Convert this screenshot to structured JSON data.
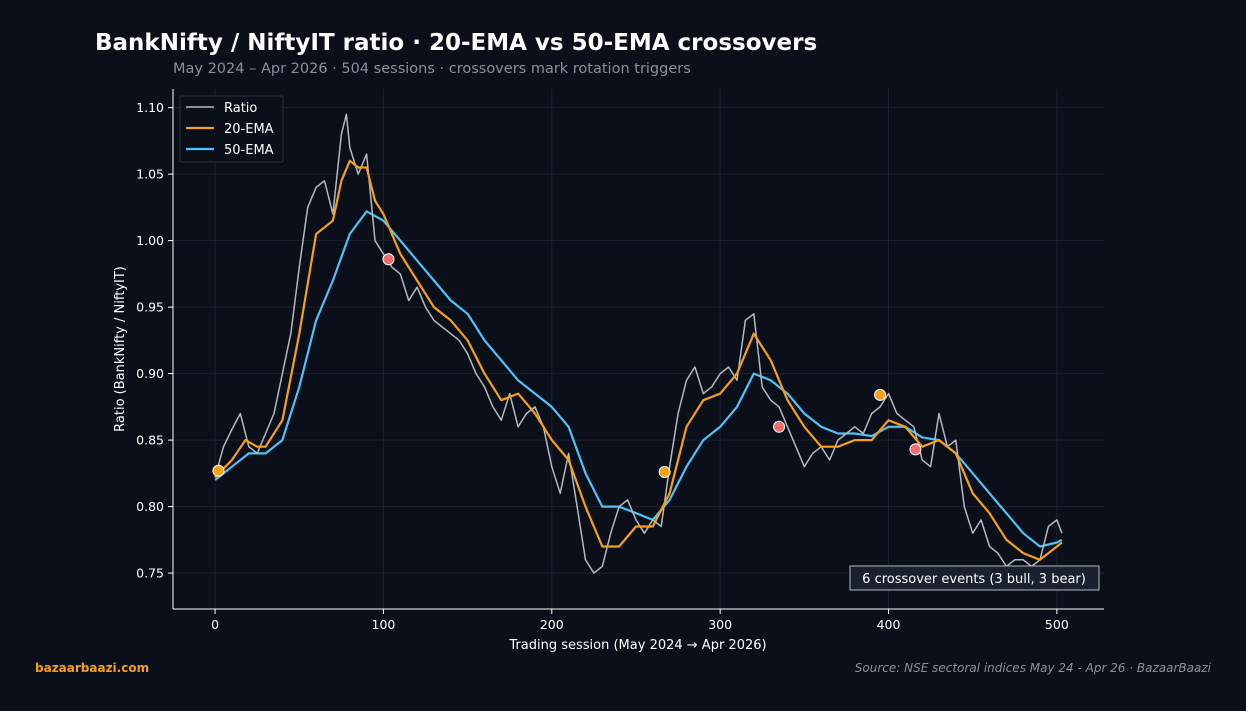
{
  "title": "BankNifty / NiftyIT ratio · 20-EMA vs 50-EMA crossovers",
  "subtitle": "May 2024 – Apr 2026  ·  504 sessions  ·  crossovers mark rotation triggers",
  "brand": "bazaarbaazi.com",
  "source": "Source: NSE sectoral indices May 24 - Apr 26  ·  BazaarBaazi",
  "colors": {
    "background": "#0b0f19",
    "ratio": "#b5b8bf",
    "ema20": "#f5a01a",
    "ema50": "#4fc3f7",
    "bull_marker": "#f5a01a",
    "bear_marker": "#f06b6b"
  },
  "chart_data": {
    "type": "line",
    "xlabel": "Trading session (May 2024 → Apr 2026)",
    "ylabel": "Ratio (BankNifty / NiftyIT)",
    "xlim": [
      -25,
      528
    ],
    "ylim": [
      0.723,
      1.114
    ],
    "xticks": [
      0,
      100,
      200,
      300,
      400,
      500
    ],
    "yticks": [
      0.75,
      0.8,
      0.85,
      0.9,
      0.95,
      1.0,
      1.05,
      1.1
    ],
    "xtick_labels": [
      "0",
      "100",
      "200",
      "300",
      "400",
      "500"
    ],
    "ytick_labels": [
      "0.75",
      "0.80",
      "0.85",
      "0.90",
      "0.95",
      "1.00",
      "1.05",
      "1.10"
    ],
    "grid": true,
    "legend_position": "top-left",
    "annotation": "6 crossover events (3 bull, 3 bear)",
    "series": [
      {
        "name": "Ratio",
        "key": "ratio",
        "x": [
          0,
          5,
          10,
          15,
          20,
          25,
          30,
          35,
          40,
          45,
          50,
          55,
          60,
          65,
          70,
          75,
          78,
          80,
          85,
          90,
          95,
          100,
          105,
          110,
          115,
          120,
          125,
          130,
          135,
          140,
          145,
          150,
          155,
          160,
          165,
          170,
          175,
          180,
          185,
          190,
          195,
          200,
          205,
          210,
          215,
          220,
          225,
          230,
          235,
          240,
          245,
          250,
          255,
          260,
          265,
          270,
          275,
          280,
          285,
          290,
          295,
          300,
          305,
          310,
          315,
          320,
          325,
          330,
          335,
          340,
          345,
          350,
          355,
          360,
          365,
          370,
          375,
          380,
          385,
          390,
          395,
          400,
          405,
          410,
          415,
          420,
          425,
          430,
          435,
          440,
          445,
          450,
          455,
          460,
          465,
          470,
          475,
          480,
          485,
          490,
          495,
          500,
          503
        ],
        "y": [
          0.822,
          0.845,
          0.858,
          0.87,
          0.845,
          0.84,
          0.855,
          0.87,
          0.9,
          0.93,
          0.98,
          1.025,
          1.04,
          1.045,
          1.02,
          1.08,
          1.095,
          1.07,
          1.05,
          1.065,
          1.0,
          0.99,
          0.98,
          0.975,
          0.955,
          0.965,
          0.95,
          0.94,
          0.935,
          0.93,
          0.925,
          0.915,
          0.9,
          0.89,
          0.875,
          0.865,
          0.885,
          0.86,
          0.87,
          0.875,
          0.86,
          0.83,
          0.81,
          0.84,
          0.8,
          0.76,
          0.75,
          0.755,
          0.78,
          0.8,
          0.805,
          0.79,
          0.78,
          0.79,
          0.785,
          0.83,
          0.87,
          0.895,
          0.905,
          0.885,
          0.89,
          0.9,
          0.905,
          0.895,
          0.94,
          0.945,
          0.89,
          0.88,
          0.875,
          0.86,
          0.845,
          0.83,
          0.84,
          0.845,
          0.835,
          0.85,
          0.855,
          0.86,
          0.855,
          0.87,
          0.875,
          0.885,
          0.87,
          0.865,
          0.86,
          0.835,
          0.83,
          0.87,
          0.845,
          0.85,
          0.8,
          0.78,
          0.79,
          0.77,
          0.765,
          0.755,
          0.76,
          0.76,
          0.755,
          0.76,
          0.785,
          0.79,
          0.78
        ]
      },
      {
        "name": "20-EMA",
        "key": "ema20",
        "x": [
          0,
          10,
          18,
          25,
          30,
          40,
          50,
          60,
          70,
          75,
          80,
          85,
          90,
          95,
          100,
          105,
          110,
          120,
          130,
          140,
          150,
          160,
          170,
          180,
          190,
          200,
          210,
          220,
          230,
          240,
          250,
          260,
          270,
          280,
          290,
          300,
          310,
          320,
          330,
          340,
          350,
          360,
          370,
          380,
          390,
          400,
          410,
          420,
          430,
          440,
          450,
          460,
          470,
          480,
          490,
          495,
          500,
          503
        ],
        "y": [
          0.822,
          0.835,
          0.85,
          0.845,
          0.845,
          0.865,
          0.93,
          1.005,
          1.015,
          1.045,
          1.06,
          1.055,
          1.055,
          1.03,
          1.02,
          1.005,
          0.99,
          0.97,
          0.95,
          0.94,
          0.925,
          0.9,
          0.88,
          0.885,
          0.87,
          0.85,
          0.835,
          0.8,
          0.77,
          0.77,
          0.785,
          0.785,
          0.81,
          0.86,
          0.88,
          0.885,
          0.9,
          0.93,
          0.91,
          0.88,
          0.86,
          0.845,
          0.845,
          0.85,
          0.85,
          0.865,
          0.86,
          0.845,
          0.85,
          0.84,
          0.81,
          0.795,
          0.775,
          0.765,
          0.76,
          0.765,
          0.77,
          0.773
        ]
      },
      {
        "name": "50-EMA",
        "key": "ema50",
        "x": [
          0,
          10,
          20,
          30,
          40,
          50,
          60,
          70,
          80,
          90,
          100,
          110,
          120,
          130,
          140,
          150,
          160,
          170,
          180,
          190,
          200,
          210,
          220,
          230,
          240,
          250,
          260,
          270,
          280,
          290,
          300,
          310,
          320,
          330,
          340,
          350,
          360,
          370,
          380,
          390,
          400,
          410,
          420,
          430,
          440,
          450,
          460,
          470,
          480,
          490,
          500,
          503
        ],
        "y": [
          0.82,
          0.83,
          0.84,
          0.84,
          0.85,
          0.89,
          0.94,
          0.97,
          1.005,
          1.022,
          1.015,
          1.0,
          0.985,
          0.97,
          0.955,
          0.945,
          0.925,
          0.91,
          0.895,
          0.885,
          0.875,
          0.86,
          0.825,
          0.8,
          0.8,
          0.795,
          0.79,
          0.805,
          0.83,
          0.85,
          0.86,
          0.875,
          0.9,
          0.895,
          0.885,
          0.87,
          0.86,
          0.855,
          0.855,
          0.853,
          0.86,
          0.86,
          0.852,
          0.85,
          0.84,
          0.825,
          0.81,
          0.795,
          0.78,
          0.77,
          0.773,
          0.775
        ]
      }
    ],
    "crossovers": [
      {
        "x": 2,
        "y": 0.827,
        "kind": "bull"
      },
      {
        "x": 103,
        "y": 0.986,
        "kind": "bear"
      },
      {
        "x": 267,
        "y": 0.826,
        "kind": "bull"
      },
      {
        "x": 335,
        "y": 0.86,
        "kind": "bear"
      },
      {
        "x": 395,
        "y": 0.884,
        "kind": "bull"
      },
      {
        "x": 416,
        "y": 0.843,
        "kind": "bear"
      }
    ]
  }
}
